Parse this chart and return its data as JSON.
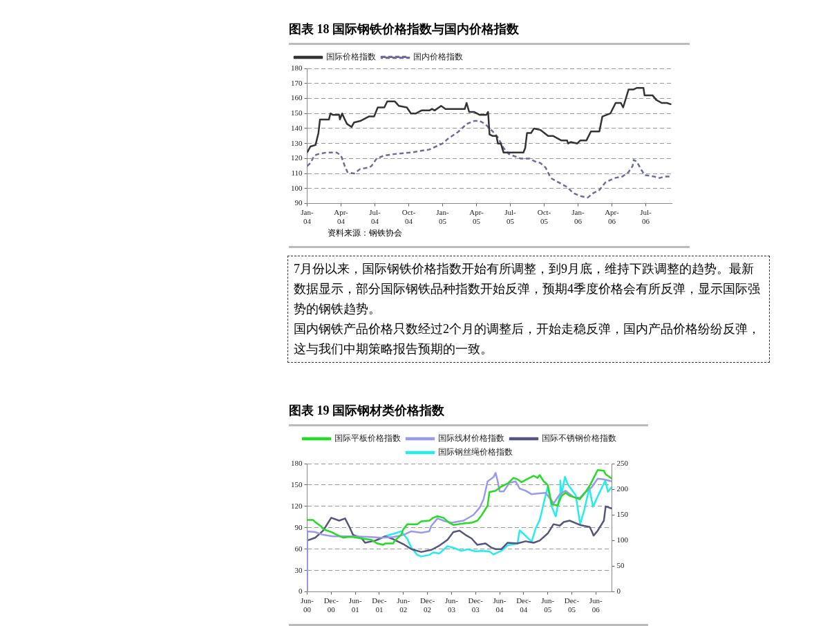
{
  "chart_data": [
    {
      "type": "line",
      "title": "图表 18 国际钢铁价格指数与国内价格指数",
      "annotations": [
        "资料来源：钢铁协会"
      ],
      "xlim": [
        "2004-01-01",
        "2006-09-10"
      ],
      "xticks": [
        {
          "value": "2004-01",
          "label": "Jan-04"
        },
        {
          "value": "2004-04",
          "label": "Apr-04"
        },
        {
          "value": "2004-07",
          "label": "Jul-04"
        },
        {
          "value": "2004-10",
          "label": "Oct-04"
        },
        {
          "value": "2005-01",
          "label": "Jan-05"
        },
        {
          "value": "2005-04",
          "label": "Apr-05"
        },
        {
          "value": "2005-07",
          "label": "Jul-05"
        },
        {
          "value": "2005-10",
          "label": "Oct-05"
        },
        {
          "value": "2006-01",
          "label": "Jan-06"
        },
        {
          "value": "2006-04",
          "label": "Apr-06"
        },
        {
          "value": "2006-07",
          "label": "Jul-06"
        }
      ],
      "ylim": [
        90,
        180
      ],
      "yticks": [
        90,
        100,
        110,
        120,
        130,
        140,
        150,
        160,
        170,
        180
      ],
      "grid": "y",
      "legend": "top left",
      "marker": "none",
      "series": [
        {
          "name": "国际价格指数",
          "color": "#333333",
          "line_style": "solid",
          "x": [
            "2004-01-01",
            "2004-01-10",
            "2004-01-24",
            "2004-02-01",
            "2004-02-05",
            "2004-02-12",
            "2004-02-28",
            "2004-03-03",
            "2004-03-10",
            "2004-03-27",
            "2004-03-29",
            "2004-04-04",
            "2004-04-11",
            "2004-04-17",
            "2004-04-29",
            "2004-05-06",
            "2004-05-23",
            "2004-06-15",
            "2004-06-29",
            "2004-07-09",
            "2004-07-27",
            "2004-08-04",
            "2004-08-25",
            "2004-09-05",
            "2004-09-26",
            "2004-10-07",
            "2004-10-21",
            "2004-11-05",
            "2004-11-26",
            "2004-12-03",
            "2004-12-10",
            "2004-12-28",
            "2005-01-09",
            "2005-02-28",
            "2005-03-05",
            "2005-03-12",
            "2005-03-26",
            "2005-04-10",
            "2005-04-27",
            "2005-05-02",
            "2005-05-06",
            "2005-05-15",
            "2005-05-25",
            "2005-05-29",
            "2005-06-06",
            "2005-06-13",
            "2005-07-04",
            "2005-08-06",
            "2005-08-11",
            "2005-08-16",
            "2005-08-27",
            "2005-09-04",
            "2005-09-21",
            "2005-10-12",
            "2005-10-26",
            "2005-11-17",
            "2005-12-02",
            "2005-12-05",
            "2005-12-12",
            "2005-12-30",
            "2006-01-07",
            "2006-01-24",
            "2006-02-05",
            "2006-02-26",
            "2006-03-06",
            "2006-03-17",
            "2006-03-28",
            "2006-04-11",
            "2006-04-25",
            "2006-05-01",
            "2006-05-16",
            "2006-05-30",
            "2006-06-07",
            "2006-06-25",
            "2006-06-28",
            "2006-07-20",
            "2006-07-30",
            "2006-08-14",
            "2006-08-28",
            "2006-09-09"
          ],
          "values": [
            124,
            128,
            129,
            137,
            146,
            146,
            146,
            150,
            149,
            149,
            146,
            150,
            146,
            143,
            141,
            144,
            145,
            148,
            148,
            154,
            154,
            158,
            158,
            155,
            154,
            150,
            150,
            152,
            152,
            153,
            152,
            155,
            153,
            153,
            157,
            151,
            151,
            149,
            149,
            151,
            136,
            135,
            135,
            130,
            130,
            124,
            124,
            124,
            127,
            137,
            137,
            140,
            139,
            135,
            135,
            132,
            132,
            130,
            131,
            130,
            132,
            132,
            138,
            138,
            148,
            149,
            150,
            157,
            157,
            154,
            166,
            166,
            167,
            167,
            162,
            162,
            159,
            157,
            157,
            156
          ]
        },
        {
          "name": "国内价格指数",
          "color": "#6b6b9e",
          "line_style": "dashed",
          "x": [
            "2004-01-01",
            "2004-01-10",
            "2004-01-21",
            "2004-02-01",
            "2004-02-22",
            "2004-03-20",
            "2004-04-01",
            "2004-04-11",
            "2004-04-18",
            "2004-05-06",
            "2004-05-23",
            "2004-06-15",
            "2004-06-22",
            "2004-07-06",
            "2004-07-27",
            "2004-08-25",
            "2004-10-07",
            "2004-11-26",
            "2005-01-01",
            "2005-01-15",
            "2005-02-13",
            "2005-03-05",
            "2005-03-26",
            "2005-04-10",
            "2005-04-24",
            "2005-05-15",
            "2005-05-29",
            "2005-06-13",
            "2005-06-27",
            "2005-07-18",
            "2005-07-29",
            "2005-08-23",
            "2005-09-07",
            "2005-09-21",
            "2005-10-05",
            "2005-10-19",
            "2005-12-02",
            "2005-12-19",
            "2006-01-07",
            "2006-01-28",
            "2006-02-11",
            "2006-02-26",
            "2006-03-14",
            "2006-04-08",
            "2006-04-29",
            "2006-05-16",
            "2006-05-27",
            "2006-05-30",
            "2006-06-07",
            "2006-06-18",
            "2006-06-28",
            "2006-07-24",
            "2006-08-08",
            "2006-08-22",
            "2006-09-05"
          ],
          "values": [
            115,
            117,
            122,
            123,
            124,
            124,
            122,
            115,
            111,
            110,
            113,
            114,
            115,
            120,
            122,
            123,
            124,
            126,
            130,
            133,
            138,
            143,
            145,
            145,
            143,
            138,
            134,
            127,
            123,
            121,
            120,
            120,
            118,
            117,
            114,
            107,
            101,
            97,
            95,
            94,
            97,
            99,
            104,
            107,
            108,
            111,
            115,
            119,
            118,
            113,
            109,
            108,
            107,
            108,
            108
          ]
        }
      ]
    },
    {
      "type": "other",
      "annotations": [
        "7月份以来，国际钢铁价格指数开始有所调整，到9月底，维持下跌调整的趋势。最新数据显示，部分国际钢铁品种指数开始反弹，预期4季度价格会有所反弹，显示国际强势的钢铁趋势。",
        "国内钢铁产品价格只数经过2个月的调整后，开始走稳反弹，国内产品价格纷纷反弹，这与我们中期策略报告预期的一致。"
      ]
    },
    {
      "type": "line",
      "title": "图表 19 国际钢材类价格指数",
      "xlim": [
        "2000-06",
        "2006-10"
      ],
      "xticks": [
        {
          "value": "2000-06",
          "label": "Jun-00"
        },
        {
          "value": "2000-12",
          "label": "Dec-00"
        },
        {
          "value": "2001-06",
          "label": "Jun-01"
        },
        {
          "value": "2001-12",
          "label": "Dec-01"
        },
        {
          "value": "2002-06",
          "label": "Jun-02"
        },
        {
          "value": "2002-12",
          "label": "Dec-02"
        },
        {
          "value": "2003-06",
          "label": "Jun-03"
        },
        {
          "value": "2003-12",
          "label": "Dec-03"
        },
        {
          "value": "2004-06",
          "label": "Jun-04"
        },
        {
          "value": "2004-12",
          "label": "Dec-04"
        },
        {
          "value": "2005-06",
          "label": "Jun-05"
        },
        {
          "value": "2005-12",
          "label": "Dec-05"
        },
        {
          "value": "2006-06",
          "label": "Jun-06"
        }
      ],
      "ylim": [
        0,
        180
      ],
      "yticks": [
        0,
        30,
        60,
        90,
        120,
        150,
        180
      ],
      "y2lim": [
        0,
        250
      ],
      "y2ticks": [
        0,
        50,
        100,
        150,
        200,
        250
      ],
      "grid": "y",
      "legend": "top",
      "marker": "none",
      "line_style": "solid",
      "series": [
        {
          "name": "国际平板价格指数",
          "color": "#22dd22",
          "x": [
            "2000-06",
            "2000-07-15",
            "2000-08",
            "2000-09-15",
            "2000-10",
            "2000-12",
            "2001-01-15",
            "2001-03",
            "2001-04",
            "2001-05-15",
            "2001-07-15",
            "2001-10",
            "2001-11-15",
            "2002-01",
            "2002-01-15",
            "2002-03-15",
            "2002-04",
            "2002-05-15",
            "2002-06",
            "2002-07",
            "2002-09-15",
            "2002-10-15",
            "2002-12-15",
            "2003-01-15",
            "2003-02-15",
            "2003-04",
            "2003-05-15",
            "2003-06-15",
            "2003-09",
            "2003-11",
            "2003-12-15",
            "2004-01-15",
            "2004-03",
            "2004-03-15",
            "2004-05",
            "2004-06-15",
            "2004-08",
            "2004-09-15",
            "2004-10-15",
            "2004-11-15",
            "2004-12-15",
            "2005-02-15",
            "2005-03-15",
            "2005-04",
            "2005-05",
            "2005-06",
            "2005-07",
            "2005-08-15",
            "2005-09-15",
            "2005-10-15",
            "2005-11-15",
            "2006-02",
            "2006-03",
            "2006-04-15",
            "2006-05-15",
            "2006-06-15",
            "2006-08",
            "2006-08-15",
            "2006-10"
          ],
          "values": [
            101,
            101,
            98,
            92,
            88,
            84,
            80,
            76,
            77,
            77,
            75,
            73,
            68,
            66,
            68,
            68,
            73,
            80,
            88,
            95,
            95,
            99,
            100,
            104,
            106,
            104,
            97,
            94,
            96,
            97,
            100,
            107,
            121,
            140,
            142,
            148,
            152,
            160,
            158,
            154,
            157,
            163,
            160,
            164,
            155,
            150,
            123,
            121,
            135,
            139,
            135,
            130,
            137,
            149,
            160,
            171,
            170,
            165,
            159
          ]
        },
        {
          "name": "国际线材价格指数",
          "color": "#9999ee",
          "x": [
            "2000-06-01",
            "2000-06-02",
            "2000-08",
            "2000-10",
            "2000-12-15",
            "2001-03",
            "2001-05-15",
            "2001-10",
            "2001-12-15",
            "2002-03-15",
            "2002-06",
            "2002-08",
            "2002-10-15",
            "2002-12-15",
            "2003-01",
            "2003-02-15",
            "2003-04-15",
            "2003-06",
            "2003-09",
            "2003-11-15",
            "2004-01",
            "2004-02",
            "2004-03",
            "2004-04-15",
            "2004-05",
            "2004-05-15",
            "2004-06",
            "2004-07",
            "2004-08-15",
            "2004-10",
            "2004-11",
            "2004-12-15",
            "2005-02",
            "2005-03-15",
            "2005-05-15",
            "2005-07",
            "2005-07-15",
            "2005-09",
            "2005-10-15",
            "2005-12-15",
            "2006-02",
            "2006-03",
            "2006-05",
            "2006-06-15",
            "2006-08",
            "2006-10"
          ],
          "values": [
            0,
            85,
            84,
            80,
            78,
            78,
            78,
            77,
            76,
            77,
            80,
            85,
            83,
            85,
            93,
            103,
            99,
            97,
            100,
            108,
            118,
            130,
            155,
            161,
            167,
            157,
            141,
            141,
            153,
            155,
            145,
            142,
            137,
            138,
            139,
            128,
            124,
            137,
            142,
            133,
            132,
            138,
            147,
            159,
            158,
            155
          ]
        },
        {
          "name": "国际不锈钢价格指数",
          "color": "#55557f",
          "x": [
            "2000-06",
            "2000-08",
            "2000-09",
            "2000-10",
            "2000-12",
            "2001-02",
            "2001-03-15",
            "2001-04-15",
            "2001-05-15",
            "2001-07-15",
            "2001-08-15",
            "2001-11",
            "2002-01-15",
            "2002-03-15",
            "2002-06",
            "2002-08",
            "2002-10-15",
            "2003-01",
            "2003-03",
            "2003-05",
            "2003-06-15",
            "2003-08",
            "2003-09-15",
            "2003-11",
            "2003-12-15",
            "2004-02-15",
            "2004-04",
            "2004-05",
            "2004-06-15",
            "2004-08",
            "2004-10-15",
            "2004-12-15",
            "2005-02-15",
            "2005-04",
            "2005-06",
            "2005-07-15",
            "2005-09",
            "2005-10",
            "2005-11-15",
            "2006-02",
            "2006-04-15",
            "2006-05",
            "2006-05-15",
            "2006-06-15",
            "2006-08",
            "2006-08-15",
            "2006-10"
          ],
          "values": [
            72,
            76,
            81,
            86,
            104,
            100,
            103,
            92,
            80,
            76,
            69,
            72,
            78,
            74,
            67,
            60,
            56,
            59,
            65,
            73,
            84,
            86,
            80,
            75,
            66,
            68,
            62,
            60,
            60,
            69,
            68,
            71,
            69,
            72,
            82,
            95,
            93,
            98,
            100,
            94,
            91,
            85,
            79,
            86,
            100,
            120,
            117
          ]
        },
        {
          "name": "国际钢丝绳价格指数",
          "color": "#22eeee",
          "axis": "y2",
          "x": [
            "2001-11-15",
            "2002-02",
            "2002-03-15",
            "2002-05-15",
            "2002-07",
            "2002-08",
            "2002-09-15",
            "2002-10-15",
            "2002-12-15",
            "2003-01-15",
            "2003-03",
            "2003-05",
            "2003-06-15",
            "2003-08-15",
            "2003-10",
            "2003-12",
            "2004-01-15",
            "2004-03-15",
            "2004-04-15",
            "2004-06-15",
            "2004-08",
            "2004-10-15",
            "2004-11",
            "2005-02",
            "2005-03",
            "2005-04",
            "2005-05-15",
            "2005-06",
            "2005-07",
            "2005-08",
            "2005-09",
            "2005-09-05",
            "2005-09-15",
            "2005-10-10",
            "2005-11",
            "2006-01",
            "2006-02-03",
            "2006-03-06",
            "2006-04-12",
            "2006-05-10",
            "2006-06-22",
            "2006-08-12",
            "2006-09",
            "2006-10"
          ],
          "values": [
            101,
            110,
            113,
            118,
            103,
            86,
            72,
            69,
            72,
            77,
            75,
            89,
            86,
            80,
            83,
            79,
            80,
            79,
            73,
            80,
            91,
            94,
            120,
            98,
            124,
            140,
            188,
            205,
            166,
            147,
            188,
            217,
            190,
            224,
            210,
            188,
            132,
            161,
            203,
            166,
            190,
            217,
            195,
            205
          ]
        }
      ]
    }
  ]
}
